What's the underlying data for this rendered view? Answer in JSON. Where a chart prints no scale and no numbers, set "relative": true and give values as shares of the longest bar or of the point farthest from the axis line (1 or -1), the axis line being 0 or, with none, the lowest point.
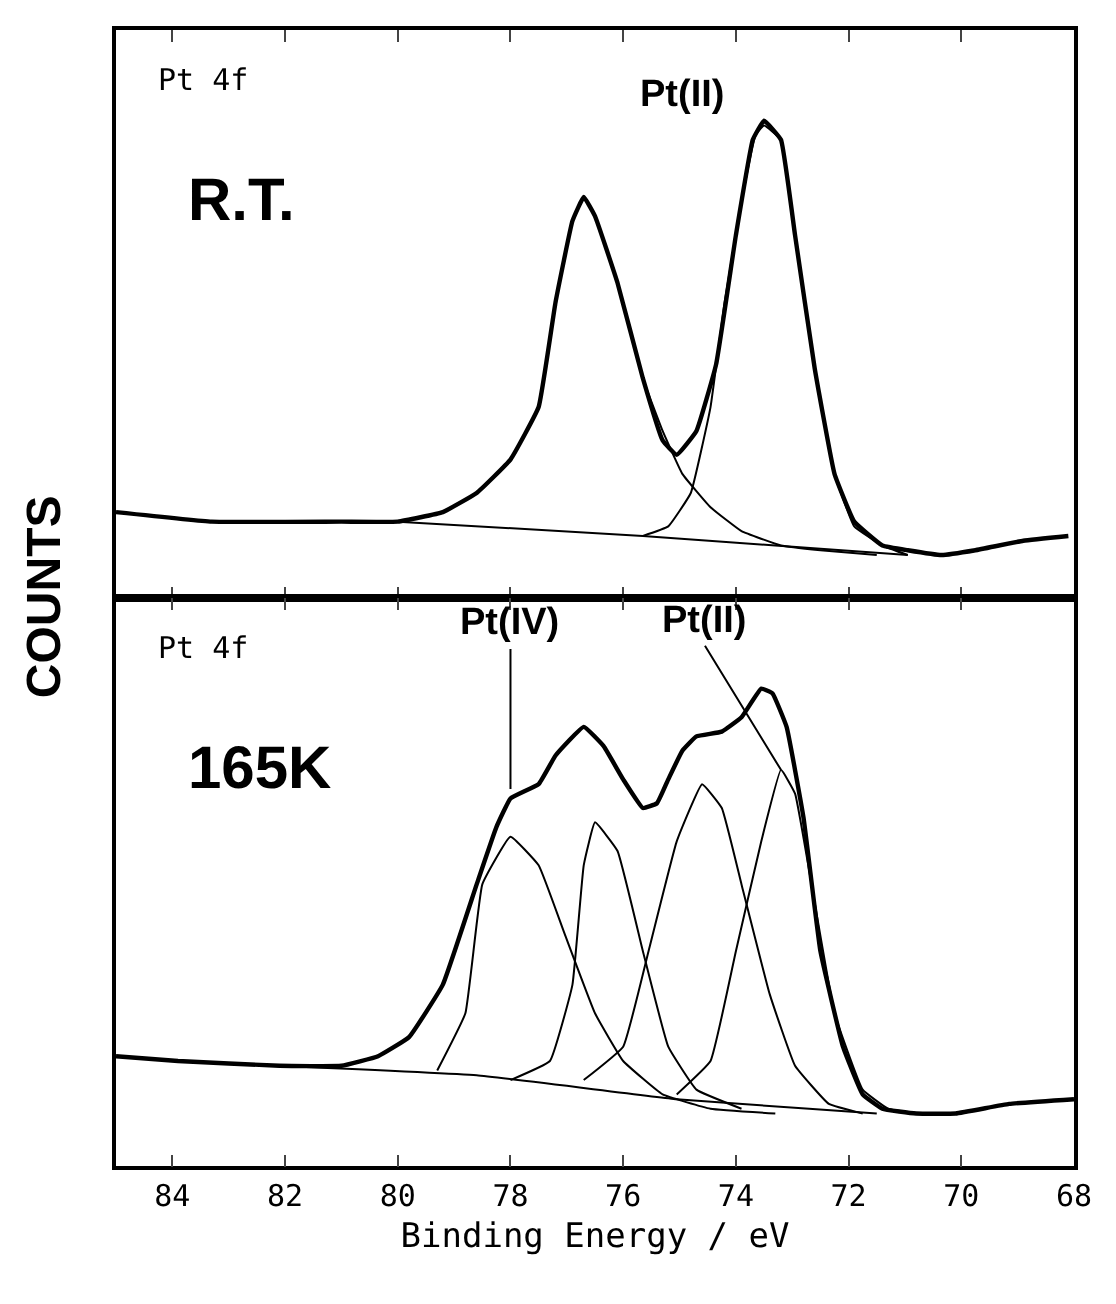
{
  "chart_data": [
    {
      "type": "line",
      "relative": true,
      "xlim": [
        85,
        68
      ],
      "xticks": [
        84,
        82,
        80,
        78,
        76,
        74,
        72,
        70,
        68
      ],
      "tick_labels": false,
      "ylabel": "COUNTS",
      "annotations": [
        "Pt 4f",
        "R.T.",
        "Pt(II)"
      ],
      "series": [
        {
          "color": "#000000",
          "x": [
            85.0,
            83.3,
            81.0,
            80.0,
            79.2,
            78.6,
            78.0,
            77.5,
            77.2,
            76.9,
            76.7,
            76.5,
            76.1,
            75.65,
            75.3,
            75.05,
            74.7,
            74.35,
            74.0,
            73.7,
            73.5,
            73.2,
            72.95,
            72.6,
            72.25,
            71.9,
            71.4,
            70.95,
            70.35,
            69.75,
            68.9,
            68.1
          ],
          "values": [
            0.18,
            0.16,
            0.16,
            0.16,
            0.18,
            0.22,
            0.29,
            0.4,
            0.62,
            0.79,
            0.84,
            0.8,
            0.66,
            0.46,
            0.33,
            0.3,
            0.35,
            0.49,
            0.76,
            0.96,
            1.0,
            0.96,
            0.76,
            0.48,
            0.26,
            0.16,
            0.11,
            0.1,
            0.09,
            0.1,
            0.12,
            0.13
          ]
        },
        {
          "color": "#000000",
          "x": [
            80.0,
            79.2,
            78.6,
            78.0,
            77.5,
            77.2,
            76.9,
            76.7,
            76.5,
            76.1,
            75.65,
            75.3,
            74.95,
            74.45,
            73.9,
            73.2,
            72.5,
            71.5
          ],
          "values": [
            0.16,
            0.18,
            0.22,
            0.29,
            0.4,
            0.62,
            0.79,
            0.84,
            0.8,
            0.66,
            0.46,
            0.35,
            0.26,
            0.19,
            0.14,
            0.11,
            0.1,
            0.09
          ]
        },
        {
          "color": "#000000",
          "x": [
            75.65,
            75.2,
            74.8,
            74.45,
            74.2,
            73.9,
            73.65,
            73.5,
            73.2,
            72.95,
            72.6,
            72.25,
            71.9,
            71.4,
            70.95
          ],
          "values": [
            0.13,
            0.15,
            0.22,
            0.4,
            0.62,
            0.83,
            0.97,
            0.99,
            0.96,
            0.76,
            0.48,
            0.26,
            0.15,
            0.11,
            0.09
          ]
        },
        {
          "color": "#000000",
          "x": [
            80.0,
            75.65,
            73.3,
            70.95
          ],
          "values": [
            0.16,
            0.13,
            0.11,
            0.09
          ]
        }
      ]
    },
    {
      "type": "line",
      "relative": true,
      "xlim": [
        85,
        68
      ],
      "xticks": [
        84,
        82,
        80,
        78,
        76,
        74,
        72,
        70,
        68
      ],
      "tick_labels": "x",
      "xlabel": "Binding Energy / eV",
      "annotations": [
        "Pt 4f",
        "165K",
        {
          "text": "Pt(IV)",
          "x": 78.0,
          "y": 0.79
        },
        {
          "text": "Pt(II)",
          "x": 73.2,
          "y": 0.83
        }
      ],
      "series": [
        {
          "color": "#000000",
          "x": [
            85.0,
            83.9,
            82.1,
            81.0,
            80.35,
            79.8,
            79.2,
            78.6,
            78.25,
            78.0,
            77.5,
            77.2,
            76.7,
            76.35,
            76.0,
            75.65,
            75.4,
            75.2,
            74.95,
            74.7,
            74.25,
            73.9,
            73.55,
            73.35,
            73.1,
            72.8,
            72.5,
            72.1,
            71.75,
            71.4,
            70.8,
            70.1,
            69.15,
            68.0
          ],
          "values": [
            0.23,
            0.22,
            0.21,
            0.21,
            0.23,
            0.27,
            0.38,
            0.59,
            0.71,
            0.77,
            0.8,
            0.86,
            0.92,
            0.88,
            0.81,
            0.75,
            0.76,
            0.81,
            0.87,
            0.9,
            0.91,
            0.94,
            1.0,
            0.99,
            0.92,
            0.73,
            0.45,
            0.25,
            0.15,
            0.12,
            0.11,
            0.11,
            0.13,
            0.14
          ]
        },
        {
          "color": "#000000",
          "x": [
            79.3,
            78.8,
            78.5,
            78.0,
            77.5,
            77.05,
            76.5,
            76.0,
            75.3,
            74.45,
            73.3
          ],
          "values": [
            0.2,
            0.32,
            0.59,
            0.69,
            0.63,
            0.49,
            0.32,
            0.22,
            0.15,
            0.12,
            0.11
          ]
        },
        {
          "color": "#000000",
          "x": [
            78.0,
            77.3,
            76.9,
            76.7,
            76.5,
            76.1,
            75.65,
            75.2,
            74.7,
            73.9
          ],
          "values": [
            0.18,
            0.22,
            0.38,
            0.63,
            0.72,
            0.66,
            0.45,
            0.25,
            0.16,
            0.12
          ]
        },
        {
          "color": "#000000",
          "x": [
            76.7,
            76.0,
            75.55,
            75.05,
            74.6,
            74.25,
            73.9,
            73.4,
            72.95,
            72.35,
            71.75
          ],
          "values": [
            0.18,
            0.25,
            0.45,
            0.68,
            0.8,
            0.75,
            0.59,
            0.36,
            0.21,
            0.13,
            0.11
          ]
        },
        {
          "color": "#000000",
          "x": [
            75.05,
            74.45,
            74.0,
            73.55,
            73.2,
            72.95,
            72.6,
            72.25,
            71.75,
            71.3,
            70.8
          ],
          "values": [
            0.15,
            0.22,
            0.45,
            0.68,
            0.83,
            0.78,
            0.55,
            0.32,
            0.16,
            0.12,
            0.11
          ]
        },
        {
          "color": "#000000",
          "x": [
            82.1,
            78.6,
            75.05,
            72.7,
            71.5
          ],
          "values": [
            0.21,
            0.19,
            0.14,
            0.12,
            0.11
          ]
        }
      ]
    }
  ]
}
